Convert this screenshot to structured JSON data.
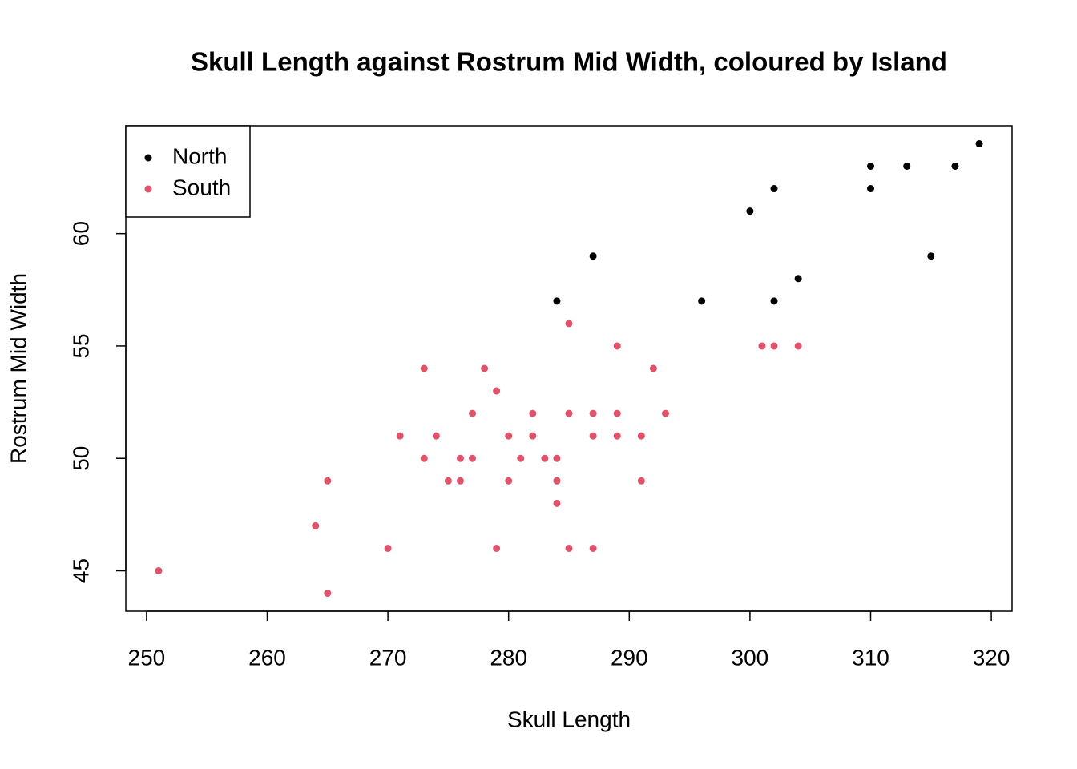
{
  "chart_data": {
    "type": "scatter",
    "title": "Skull Length against Rostrum Mid Width, coloured by Island",
    "x_label": "Skull Length",
    "y_label": "Rostrum Mid Width",
    "xlim": [
      248.28,
      321.72
    ],
    "ylim": [
      43.2,
      64.8
    ],
    "xticks": [
      250,
      260,
      270,
      280,
      290,
      300,
      310,
      320
    ],
    "yticks": [
      45,
      50,
      55,
      60
    ],
    "legend": "top-left",
    "series": [
      {
        "name": "North",
        "color": "#000000",
        "x": [
          284,
          287,
          296,
          300,
          302,
          302,
          304,
          310,
          310,
          313,
          315,
          317,
          319
        ],
        "values": [
          57,
          59,
          57,
          61,
          62,
          57,
          58,
          63,
          62,
          63,
          59,
          63,
          64
        ]
      },
      {
        "name": "South",
        "color": "#DF536B",
        "x": [
          251,
          264,
          265,
          265,
          270,
          271,
          273,
          273,
          274,
          275,
          276,
          276,
          277,
          277,
          278,
          279,
          279,
          280,
          280,
          281,
          282,
          282,
          283,
          284,
          284,
          284,
          285,
          285,
          285,
          287,
          287,
          287,
          289,
          289,
          289,
          291,
          291,
          292,
          293,
          301,
          302,
          304
        ],
        "values": [
          45,
          47,
          49,
          44,
          46,
          51,
          54,
          50,
          51,
          49,
          50,
          49,
          52,
          50,
          54,
          53,
          46,
          51,
          49,
          50,
          52,
          51,
          50,
          50,
          49,
          48,
          56,
          52,
          46,
          52,
          51,
          46,
          55,
          52,
          51,
          51,
          49,
          54,
          52,
          55,
          55,
          55
        ]
      }
    ]
  }
}
